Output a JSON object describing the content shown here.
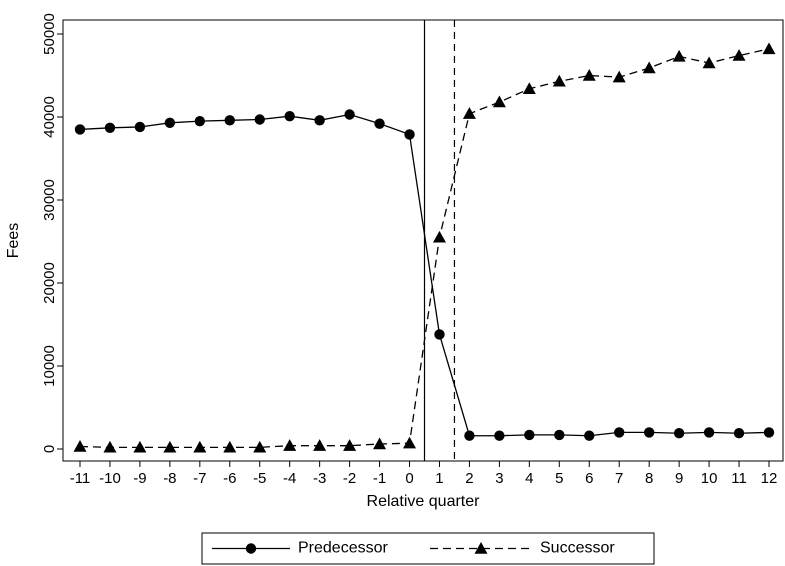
{
  "chart_data": {
    "type": "line",
    "xlabel": "Relative quarter",
    "ylabel": "Fees",
    "x": [
      -11,
      -10,
      -9,
      -8,
      -7,
      -6,
      -5,
      -4,
      -3,
      -2,
      -1,
      0,
      1,
      2,
      3,
      4,
      5,
      6,
      7,
      8,
      9,
      10,
      11,
      12
    ],
    "x_ticks": [
      "-11",
      "-10",
      "-9",
      "-8",
      "-7",
      "-6",
      "-5",
      "-4",
      "-3",
      "-2",
      "-1",
      "0",
      "1",
      "2",
      "3",
      "4",
      "5",
      "6",
      "7",
      "8",
      "9",
      "10",
      "11",
      "12"
    ],
    "xlim": [
      -11,
      12
    ],
    "ylim": [
      0,
      50000
    ],
    "y_ticks": [
      0,
      10000,
      20000,
      30000,
      40000,
      50000
    ],
    "y_tick_labels": [
      "0",
      "10000",
      "20000",
      "30000",
      "40000",
      "50000"
    ],
    "vertical_lines": [
      {
        "x": 0.5,
        "style": "solid"
      },
      {
        "x": 1.5,
        "style": "dashed"
      }
    ],
    "series": [
      {
        "name": "Predecessor",
        "marker": "circle",
        "line_style": "solid",
        "color": "#000000",
        "values": [
          38500,
          38700,
          38800,
          39300,
          39500,
          39600,
          39700,
          40100,
          39600,
          40300,
          39200,
          37900,
          13800,
          1600,
          1600,
          1700,
          1700,
          1600,
          2000,
          2000,
          1900,
          2000,
          1900,
          2000
        ]
      },
      {
        "name": "Successor",
        "marker": "triangle",
        "line_style": "dashed",
        "color": "#000000",
        "values": [
          300,
          200,
          200,
          200,
          200,
          200,
          200,
          400,
          400,
          400,
          600,
          700,
          25500,
          40400,
          41800,
          43400,
          44300,
          45000,
          44800,
          45900,
          47300,
          46500,
          47400,
          48200
        ]
      }
    ],
    "grid": false,
    "legend_position": "bottom"
  }
}
